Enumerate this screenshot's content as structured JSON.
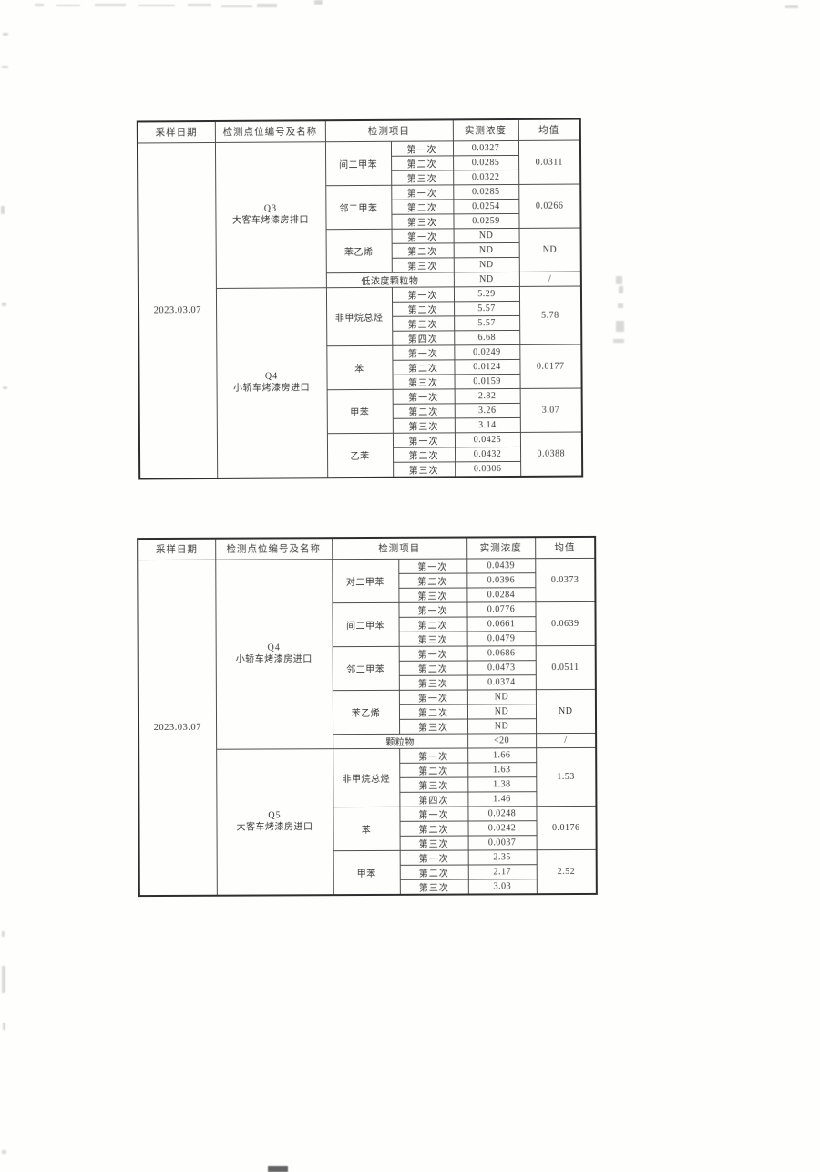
{
  "tables": [
    {
      "headers": [
        "采样日期",
        "检测点位编号及名称",
        "检测项目",
        "实测浓度",
        "均值"
      ],
      "sample_date": "2023.03.07",
      "sections": [
        {
          "point_code": "Q3",
          "point_name": "大客车烤漆房排口",
          "groups": [
            {
              "item": "间二甲苯",
              "mean": "0.0311",
              "runs": [
                {
                  "label": "第一次",
                  "value": "0.0327"
                },
                {
                  "label": "第二次",
                  "value": "0.0285"
                },
                {
                  "label": "第三次",
                  "value": "0.0322"
                }
              ]
            },
            {
              "item": "邻二甲苯",
              "mean": "0.0266",
              "runs": [
                {
                  "label": "第一次",
                  "value": "0.0285"
                },
                {
                  "label": "第二次",
                  "value": "0.0254"
                },
                {
                  "label": "第三次",
                  "value": "0.0259"
                }
              ]
            },
            {
              "item": "苯乙烯",
              "mean": "ND",
              "runs": [
                {
                  "label": "第一次",
                  "value": "ND"
                },
                {
                  "label": "第二次",
                  "value": "ND"
                },
                {
                  "label": "第三次",
                  "value": "ND"
                }
              ]
            },
            {
              "item": "低浓度颗粒物",
              "wide": true,
              "value": "ND",
              "mean": "/"
            }
          ]
        },
        {
          "point_code": "Q4",
          "point_name": "小轿车烤漆房进口",
          "groups": [
            {
              "item": "非甲烷总烃",
              "mean": "5.78",
              "runs": [
                {
                  "label": "第一次",
                  "value": "5.29"
                },
                {
                  "label": "第二次",
                  "value": "5.57"
                },
                {
                  "label": "第三次",
                  "value": "5.57"
                },
                {
                  "label": "第四次",
                  "value": "6.68"
                }
              ]
            },
            {
              "item": "苯",
              "mean": "0.0177",
              "runs": [
                {
                  "label": "第一次",
                  "value": "0.0249"
                },
                {
                  "label": "第二次",
                  "value": "0.0124"
                },
                {
                  "label": "第三次",
                  "value": "0.0159"
                }
              ]
            },
            {
              "item": "甲苯",
              "mean": "3.07",
              "runs": [
                {
                  "label": "第一次",
                  "value": "2.82"
                },
                {
                  "label": "第二次",
                  "value": "3.26"
                },
                {
                  "label": "第三次",
                  "value": "3.14"
                }
              ]
            },
            {
              "item": "乙苯",
              "mean": "0.0388",
              "runs": [
                {
                  "label": "第一次",
                  "value": "0.0425"
                },
                {
                  "label": "第二次",
                  "value": "0.0432"
                },
                {
                  "label": "第三次",
                  "value": "0.0306"
                }
              ]
            }
          ]
        }
      ]
    },
    {
      "headers": [
        "采样日期",
        "检测点位编号及名称",
        "检测项目",
        "实测浓度",
        "均值"
      ],
      "sample_date": "2023.03.07",
      "sections": [
        {
          "point_code": "Q4",
          "point_name": "小轿车烤漆房进口",
          "groups": [
            {
              "item": "对二甲苯",
              "mean": "0.0373",
              "runs": [
                {
                  "label": "第一次",
                  "value": "0.0439"
                },
                {
                  "label": "第二次",
                  "value": "0.0396"
                },
                {
                  "label": "第三次",
                  "value": "0.0284"
                }
              ]
            },
            {
              "item": "间二甲苯",
              "mean": "0.0639",
              "runs": [
                {
                  "label": "第一次",
                  "value": "0.0776"
                },
                {
                  "label": "第二次",
                  "value": "0.0661"
                },
                {
                  "label": "第三次",
                  "value": "0.0479"
                }
              ]
            },
            {
              "item": "邻二甲苯",
              "mean": "0.0511",
              "runs": [
                {
                  "label": "第一次",
                  "value": "0.0686"
                },
                {
                  "label": "第二次",
                  "value": "0.0473"
                },
                {
                  "label": "第三次",
                  "value": "0.0374"
                }
              ]
            },
            {
              "item": "苯乙烯",
              "mean": "ND",
              "runs": [
                {
                  "label": "第一次",
                  "value": "ND"
                },
                {
                  "label": "第二次",
                  "value": "ND"
                },
                {
                  "label": "第三次",
                  "value": "ND"
                }
              ]
            },
            {
              "item": "颗粒物",
              "wide": true,
              "value": "<20",
              "mean": "/"
            }
          ]
        },
        {
          "point_code": "Q5",
          "point_name": "大客车烤漆房进口",
          "groups": [
            {
              "item": "非甲烷总烃",
              "mean": "1.53",
              "runs": [
                {
                  "label": "第一次",
                  "value": "1.66"
                },
                {
                  "label": "第二次",
                  "value": "1.63"
                },
                {
                  "label": "第三次",
                  "value": "1.38"
                },
                {
                  "label": "第四次",
                  "value": "1.46"
                }
              ]
            },
            {
              "item": "苯",
              "mean": "0.0176",
              "runs": [
                {
                  "label": "第一次",
                  "value": "0.0248"
                },
                {
                  "label": "第二次",
                  "value": "0.0242"
                },
                {
                  "label": "第三次",
                  "value": "0.0037"
                }
              ]
            },
            {
              "item": "甲苯",
              "mean": "2.52",
              "runs": [
                {
                  "label": "第一次",
                  "value": "2.35"
                },
                {
                  "label": "第二次",
                  "value": "2.17"
                },
                {
                  "label": "第三次",
                  "value": "3.03"
                }
              ]
            }
          ]
        }
      ]
    }
  ]
}
